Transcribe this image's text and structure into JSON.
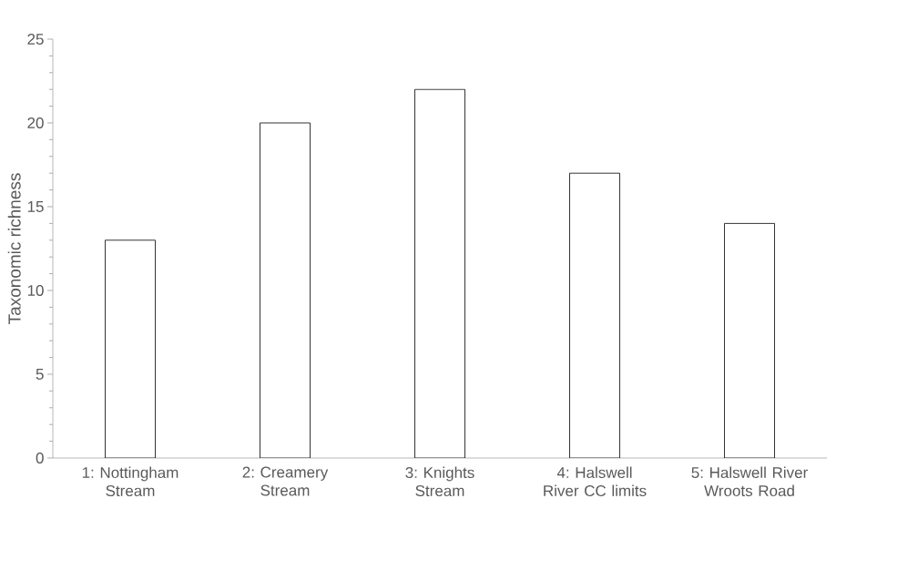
{
  "chart_data": {
    "type": "bar",
    "ylabel": "Taxonomic richness",
    "categories": [
      "1: Nottingham Stream",
      "2: Creamery Stream",
      "3: Knights Stream",
      "4: Halswell River CC limits",
      "5: Halswell River Wroots Road"
    ],
    "values": [
      13,
      20,
      22,
      17,
      14
    ],
    "color": "#ffffff",
    "ylim": [
      0,
      25
    ],
    "yticks": [
      0,
      5,
      10,
      15,
      20,
      25
    ],
    "grid": false
  }
}
